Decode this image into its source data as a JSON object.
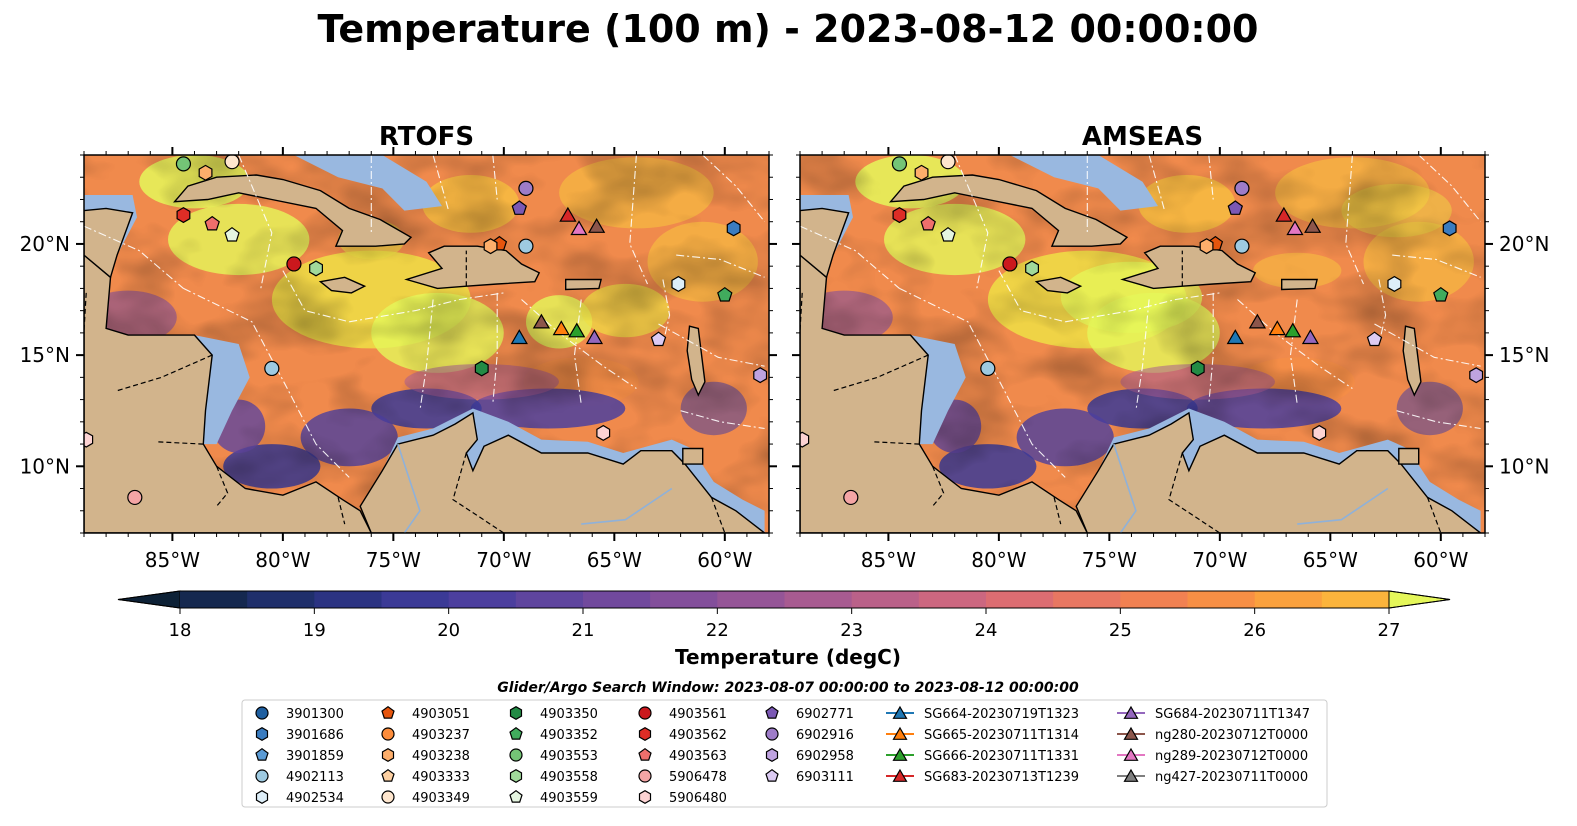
{
  "title": "Temperature (100 m) - 2023-08-12 00:00:00",
  "panels": [
    {
      "title": "RTOFS",
      "variant": "rtofs"
    },
    {
      "title": "AMSEAS",
      "variant": "amseas"
    }
  ],
  "map_extent": {
    "lon": [
      -89,
      -58
    ],
    "lat": [
      7,
      24
    ]
  },
  "lon_ticks": [
    {
      "value": -85,
      "label": "85°W"
    },
    {
      "value": -80,
      "label": "80°W"
    },
    {
      "value": -75,
      "label": "75°W"
    },
    {
      "value": -70,
      "label": "70°W"
    },
    {
      "value": -65,
      "label": "65°W"
    },
    {
      "value": -60,
      "label": "60°W"
    }
  ],
  "lat_ticks": [
    {
      "value": 20,
      "label": "20°N"
    },
    {
      "value": 15,
      "label": "15°N"
    },
    {
      "value": 10,
      "label": "10°N"
    }
  ],
  "colorbar": {
    "label": "Temperature (degC)",
    "min": 18,
    "max": 27,
    "step": 0.5,
    "ticks": [
      "18",
      "19",
      "20",
      "21",
      "22",
      "23",
      "24",
      "25",
      "26",
      "27"
    ],
    "colors": [
      "#0d2136",
      "#15284f",
      "#1f2f6b",
      "#2b3382",
      "#3b3a96",
      "#4c3f9e",
      "#5f459e",
      "#71499d",
      "#834f9b",
      "#955597",
      "#a85b91",
      "#ba6189",
      "#cc6780",
      "#dc6d72",
      "#e87762",
      "#f18152",
      "#f78f45",
      "#faa13e",
      "#fbb43c",
      "#f8c83e",
      "#eedf45",
      "#e5f75a"
    ]
  },
  "colors": {
    "land": "#d2b48c",
    "shelf_water": "#99b8e0",
    "ocean_mid": "#f08a4c",
    "deep_cold": "#0d2136"
  },
  "search_window": "Glider/Argo Search Window: 2023-08-07 00:00:00 to 2023-08-12 00:00:00",
  "legend": [
    {
      "label": "3901300",
      "marker": "circle",
      "color": "#1f5fa0"
    },
    {
      "label": "3901686",
      "marker": "hexagon",
      "color": "#3a7cc0"
    },
    {
      "label": "3901859",
      "marker": "pentagon",
      "color": "#5b9bd5"
    },
    {
      "label": "4902113",
      "marker": "circle",
      "color": "#9ecae1"
    },
    {
      "label": "4902534",
      "marker": "hexagon",
      "color": "#ddeef8"
    },
    {
      "label": "4903051",
      "marker": "pentagon",
      "color": "#e6550d"
    },
    {
      "label": "4903237",
      "marker": "circle",
      "color": "#fd8d3c"
    },
    {
      "label": "4903238",
      "marker": "hexagon",
      "color": "#fdae6b"
    },
    {
      "label": "4903333",
      "marker": "pentagon",
      "color": "#fdd0a2"
    },
    {
      "label": "4903349",
      "marker": "circle",
      "color": "#fee6ce"
    },
    {
      "label": "4903350",
      "marker": "hexagon",
      "color": "#238b45"
    },
    {
      "label": "4903352",
      "marker": "pentagon",
      "color": "#41ab5d"
    },
    {
      "label": "4903553",
      "marker": "circle",
      "color": "#74c476"
    },
    {
      "label": "4903558",
      "marker": "hexagon",
      "color": "#a1d99b"
    },
    {
      "label": "4903559",
      "marker": "pentagon",
      "color": "#e5f5e0"
    },
    {
      "label": "4903561",
      "marker": "circle",
      "color": "#cb181d"
    },
    {
      "label": "4903562",
      "marker": "hexagon",
      "color": "#de2d26"
    },
    {
      "label": "4903563",
      "marker": "pentagon",
      "color": "#ef6f6c"
    },
    {
      "label": "5906478",
      "marker": "circle",
      "color": "#f4a5a5"
    },
    {
      "label": "5906480",
      "marker": "hexagon",
      "color": "#fcd3d3"
    },
    {
      "label": "6902771",
      "marker": "pentagon",
      "color": "#7b58b4"
    },
    {
      "label": "6902916",
      "marker": "circle",
      "color": "#9e7cc8"
    },
    {
      "label": "6902958",
      "marker": "hexagon",
      "color": "#bfa3e0"
    },
    {
      "label": "6903111",
      "marker": "pentagon",
      "color": "#dccbf3"
    },
    {
      "label": "SG664-20230719T1323",
      "marker": "triangle-line",
      "color": "#1f77b4"
    },
    {
      "label": "SG665-20230711T1314",
      "marker": "triangle-line",
      "color": "#ff7f0e"
    },
    {
      "label": "SG666-20230711T1331",
      "marker": "triangle-line",
      "color": "#2ca02c"
    },
    {
      "label": "SG683-20230713T1239",
      "marker": "triangle-line",
      "color": "#d62728"
    },
    {
      "label": "SG684-20230711T1347",
      "marker": "triangle-line",
      "color": "#9467bd"
    },
    {
      "label": "ng280-20230712T0000",
      "marker": "triangle-line",
      "color": "#8c564b"
    },
    {
      "label": "ng289-20230712T0000",
      "marker": "triangle-line",
      "color": "#e377c2"
    },
    {
      "label": "ng427-20230711T0000",
      "marker": "triangle-line",
      "color": "#7f7f7f"
    }
  ],
  "observations": [
    {
      "id": "4903553",
      "lon": -84.5,
      "lat": 23.6
    },
    {
      "id": "4903238",
      "lon": -83.5,
      "lat": 23.2
    },
    {
      "id": "4903349",
      "lon": -82.3,
      "lat": 23.7
    },
    {
      "id": "4903562",
      "lon": -84.5,
      "lat": 21.3
    },
    {
      "id": "4903563",
      "lon": -83.2,
      "lat": 20.9
    },
    {
      "id": "4903559",
      "lon": -82.3,
      "lat": 20.4
    },
    {
      "id": "4903561",
      "lon": -79.5,
      "lat": 19.1
    },
    {
      "id": "4903558",
      "lon": -78.5,
      "lat": 18.9
    },
    {
      "id": "6902916",
      "lon": -69.0,
      "lat": 22.5
    },
    {
      "id": "6902771",
      "lon": -69.3,
      "lat": 21.6
    },
    {
      "id": "4903051",
      "lon": -70.2,
      "lat": 20.0
    },
    {
      "id": "4903238",
      "lon": -70.6,
      "lat": 19.9
    },
    {
      "id": "4902113",
      "lon": -69.0,
      "lat": 19.9
    },
    {
      "id": "SG683-20230713T1239",
      "lon": -67.1,
      "lat": 21.3
    },
    {
      "id": "ng289-20230712T0000",
      "lon": -66.6,
      "lat": 20.7
    },
    {
      "id": "ng280-20230712T0000",
      "lon": -65.8,
      "lat": 20.8
    },
    {
      "id": "3901686",
      "lon": -59.6,
      "lat": 20.7
    },
    {
      "id": "4902534",
      "lon": -62.1,
      "lat": 18.2
    },
    {
      "id": "4903352",
      "lon": -60.0,
      "lat": 17.7
    },
    {
      "id": "SG664-20230719T1323",
      "lon": -69.3,
      "lat": 15.8
    },
    {
      "id": "ng280-20230712T0000",
      "lon": -68.3,
      "lat": 16.5
    },
    {
      "id": "SG665-20230711T1314",
      "lon": -67.4,
      "lat": 16.2
    },
    {
      "id": "SG666-20230711T1331",
      "lon": -66.7,
      "lat": 16.1
    },
    {
      "id": "SG684-20230711T1347",
      "lon": -65.9,
      "lat": 15.8
    },
    {
      "id": "6903111",
      "lon": -63.0,
      "lat": 15.7
    },
    {
      "id": "4903350",
      "lon": -71.0,
      "lat": 14.4
    },
    {
      "id": "4902113",
      "lon": -80.5,
      "lat": 14.4
    },
    {
      "id": "6902958",
      "lon": -58.4,
      "lat": 14.1
    },
    {
      "id": "5906480",
      "lon": -88.9,
      "lat": 11.2
    },
    {
      "id": "5906480",
      "lon": -65.5,
      "lat": 11.5
    },
    {
      "id": "5906478",
      "lon": -86.7,
      "lat": 8.6
    }
  ]
}
